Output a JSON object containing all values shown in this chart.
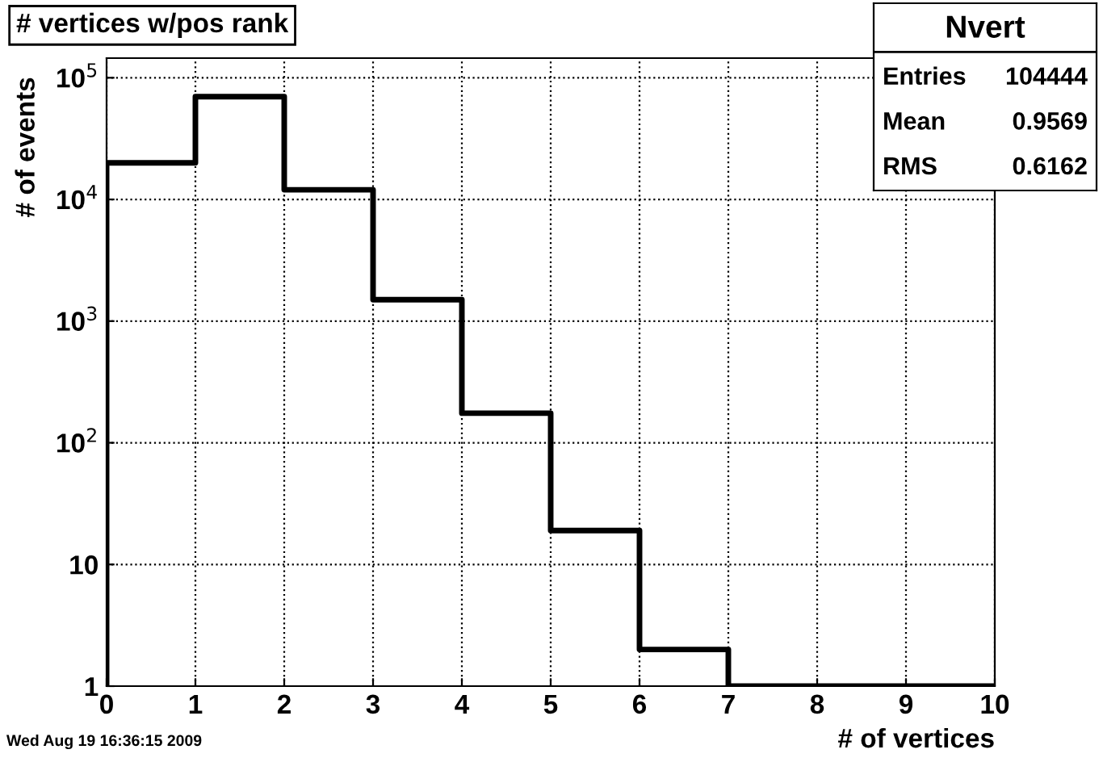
{
  "chart_data": {
    "type": "histogram",
    "title": "# vertices w/pos rank",
    "xlabel": "# of vertices",
    "ylabel": "# of events",
    "bins": [
      0,
      1,
      2,
      3,
      4,
      5,
      6,
      7,
      8,
      9,
      10
    ],
    "values": [
      20000,
      70000,
      12000,
      1500,
      175,
      19,
      2,
      1,
      1,
      1
    ],
    "color": "#000000",
    "log": true,
    "xlim": [
      0,
      10
    ],
    "xticks": [
      0,
      1,
      2,
      3,
      4,
      5,
      6,
      7,
      8,
      9,
      10
    ],
    "ylim": [
      1,
      145000
    ],
    "yticks": [
      1,
      10,
      {
        "value": 100,
        "label": "10$^{2}$"
      },
      {
        "value": 1000,
        "label": "10$^{3}$"
      },
      {
        "value": 10000,
        "label": "10$^{4}$"
      },
      {
        "value": 100000,
        "label": "10$^{5}$"
      }
    ],
    "grid": true,
    "line_style": "solid",
    "annotations": [
      "Nvert",
      "Entries  104444",
      "Mean    0.9569",
      "RMS     0.6162",
      "Wed Aug 19 16:36:15 2009"
    ]
  }
}
